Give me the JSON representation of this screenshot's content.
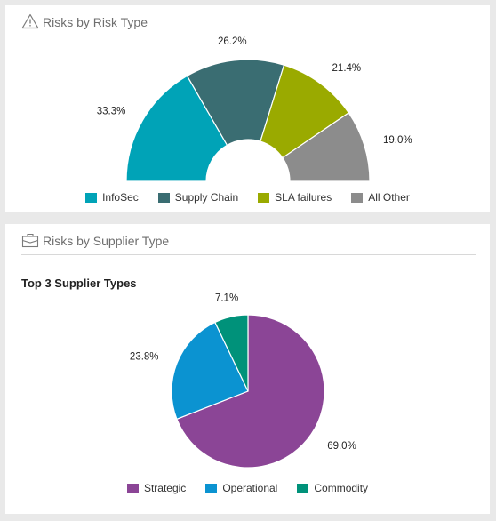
{
  "risk_type_card": {
    "title": "Risks by Risk Type",
    "icon": "warning-triangle-icon"
  },
  "supplier_type_card": {
    "title": "Risks by Supplier Type",
    "icon": "briefcase-icon",
    "subtitle": "Top 3 Supplier Types"
  },
  "chart_data": [
    {
      "type": "pie",
      "variant": "semi-donut",
      "labels": [
        "InfoSec",
        "Supply Chain",
        "SLA failures",
        "All Other"
      ],
      "values": [
        33.3,
        26.2,
        21.4,
        19.0
      ],
      "data_labels": [
        "33.3%",
        "26.2%",
        "21.4%",
        "19.0%"
      ],
      "colors": [
        "#00a3b7",
        "#3a6d72",
        "#9aaa00",
        "#8c8c8c"
      ],
      "legend": "bottom"
    },
    {
      "type": "pie",
      "labels": [
        "Strategic",
        "Operational",
        "Commodity"
      ],
      "values": [
        69.0,
        23.8,
        7.1
      ],
      "data_labels": [
        "69.0%",
        "23.8%",
        "7.1%"
      ],
      "colors": [
        "#8b4596",
        "#0b93d1",
        "#00927a"
      ],
      "legend": "bottom"
    }
  ]
}
